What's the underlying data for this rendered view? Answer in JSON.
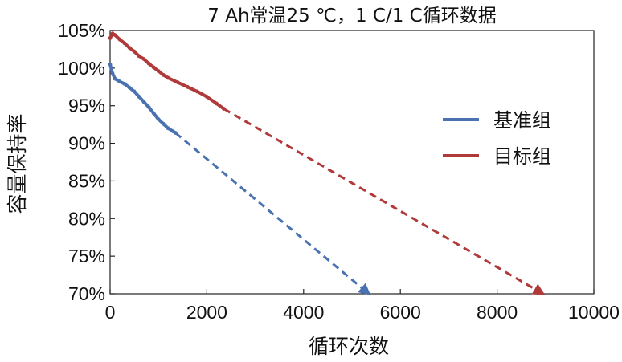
{
  "chart_data": {
    "type": "line",
    "title": "7 Ah常温25 ℃，1 C/1 C循环数据",
    "xlabel": "循环次数",
    "ylabel": "容量保持率",
    "xlim": [
      0,
      10000
    ],
    "ylim": [
      70,
      105
    ],
    "x_ticks": [
      0,
      2000,
      4000,
      6000,
      8000,
      10000
    ],
    "x_tick_labels": [
      "0",
      "2000",
      "4000",
      "6000",
      "8000",
      "10000"
    ],
    "y_ticks": [
      70,
      75,
      80,
      85,
      90,
      95,
      100,
      105
    ],
    "y_tick_labels": [
      "70%",
      "75%",
      "80%",
      "85%",
      "90%",
      "95%",
      "100%",
      "105%"
    ],
    "grid": false,
    "legend_position": "right",
    "series": [
      {
        "name": "基准组",
        "color": "#4a72b0",
        "measured": {
          "x": [
            0,
            50,
            100,
            200,
            300,
            400,
            500,
            600,
            700,
            800,
            900,
            1000,
            1100,
            1200,
            1300,
            1350
          ],
          "y": [
            100.5,
            99.3,
            98.6,
            98.2,
            97.9,
            97.4,
            96.9,
            96.2,
            95.5,
            94.8,
            94.0,
            93.2,
            92.6,
            92.0,
            91.6,
            91.4
          ]
        },
        "projected": {
          "x": [
            1350,
            5350
          ],
          "y": [
            91.4,
            70.0
          ],
          "style": "dashed",
          "end_marker": "arrow"
        }
      },
      {
        "name": "目标组",
        "color": "#b03a3a",
        "measured": {
          "x": [
            0,
            50,
            100,
            200,
            300,
            400,
            500,
            600,
            700,
            800,
            900,
            1000,
            1100,
            1200,
            1400,
            1600,
            1800,
            2000,
            2200,
            2350
          ],
          "y": [
            104.0,
            104.6,
            104.4,
            103.8,
            103.3,
            102.7,
            102.2,
            101.6,
            101.2,
            100.6,
            100.1,
            99.6,
            99.1,
            98.7,
            98.1,
            97.5,
            96.9,
            96.2,
            95.3,
            94.6
          ]
        },
        "projected": {
          "x": [
            2350,
            8950
          ],
          "y": [
            94.6,
            70.0
          ],
          "style": "dashed",
          "end_marker": "arrow"
        }
      }
    ]
  }
}
